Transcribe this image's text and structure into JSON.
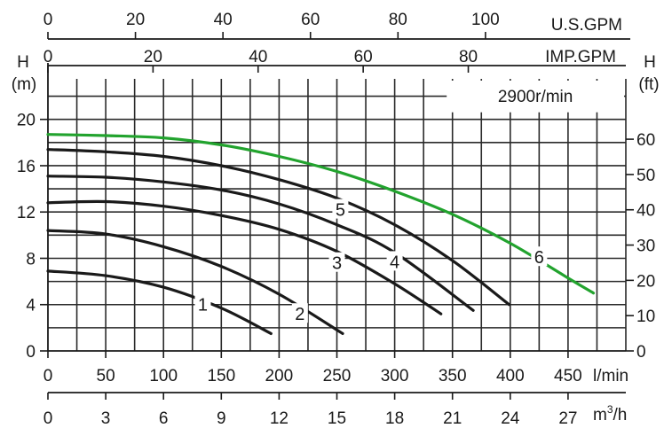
{
  "chart_data": {
    "type": "line",
    "speed_label": "2900r/min",
    "x_axis": {
      "unit": "l/min",
      "range": [
        0,
        500
      ],
      "ticks": [
        0,
        50,
        100,
        150,
        200,
        250,
        300,
        350,
        400,
        450
      ]
    },
    "x_axis_m3h": {
      "unit_base": "m",
      "unit_sup": "3",
      "unit_tail": "/h",
      "ticks": [
        0,
        3,
        6,
        9,
        12,
        15,
        18,
        21,
        24,
        27
      ]
    },
    "x_axis_usgpm": {
      "unit": "U.S.GPM",
      "ticks": [
        0,
        20,
        40,
        60,
        80,
        100
      ]
    },
    "x_axis_impgpm": {
      "unit": "IMP.GPM",
      "ticks": [
        0,
        20,
        40,
        60,
        80
      ]
    },
    "y_axis_left": {
      "label": "H",
      "unit": "(m)",
      "range": [
        0,
        23.5
      ],
      "ticks": [
        0,
        4,
        8,
        12,
        16,
        20
      ]
    },
    "y_axis_right": {
      "label": "H",
      "unit": "(ft)",
      "ticks": [
        0,
        10,
        20,
        30,
        40,
        50,
        60
      ]
    },
    "grid": true,
    "series": [
      {
        "name": "1",
        "color": "#1a1a1a",
        "x": [
          0,
          50,
          100,
          150,
          193
        ],
        "y": [
          6.9,
          6.5,
          5.5,
          3.7,
          1.5
        ],
        "label_at": [
          134,
          4.0
        ]
      },
      {
        "name": "2",
        "color": "#1a1a1a",
        "x": [
          0,
          50,
          100,
          150,
          200,
          255
        ],
        "y": [
          10.4,
          10.1,
          9.0,
          7.3,
          4.9,
          1.5
        ],
        "label_at": [
          218,
          3.2
        ]
      },
      {
        "name": "3",
        "color": "#1a1a1a",
        "x": [
          0,
          50,
          100,
          150,
          200,
          250,
          300,
          340
        ],
        "y": [
          12.8,
          12.9,
          12.5,
          11.7,
          10.5,
          8.6,
          5.8,
          3.2
        ],
        "label_at": [
          250,
          7.6
        ]
      },
      {
        "name": "4",
        "color": "#1a1a1a",
        "x": [
          0,
          50,
          100,
          150,
          200,
          250,
          300,
          368
        ],
        "y": [
          15.1,
          15.0,
          14.6,
          13.9,
          12.7,
          10.9,
          8.5,
          3.5
        ],
        "label_at": [
          300,
          7.7
        ]
      },
      {
        "name": "5",
        "color": "#1a1a1a",
        "x": [
          0,
          50,
          100,
          150,
          200,
          250,
          300,
          350,
          399
        ],
        "y": [
          17.4,
          17.2,
          16.8,
          16.0,
          14.8,
          13.2,
          10.9,
          7.8,
          4.0
        ],
        "label_at": [
          253,
          12.2
        ]
      },
      {
        "name": "6",
        "color": "#22a32e",
        "x": [
          0,
          50,
          100,
          150,
          200,
          250,
          300,
          350,
          400,
          450,
          472
        ],
        "y": [
          18.7,
          18.6,
          18.4,
          17.8,
          16.8,
          15.5,
          13.8,
          11.8,
          9.3,
          6.3,
          5.0
        ],
        "label_at": [
          425,
          8.1
        ]
      }
    ]
  }
}
